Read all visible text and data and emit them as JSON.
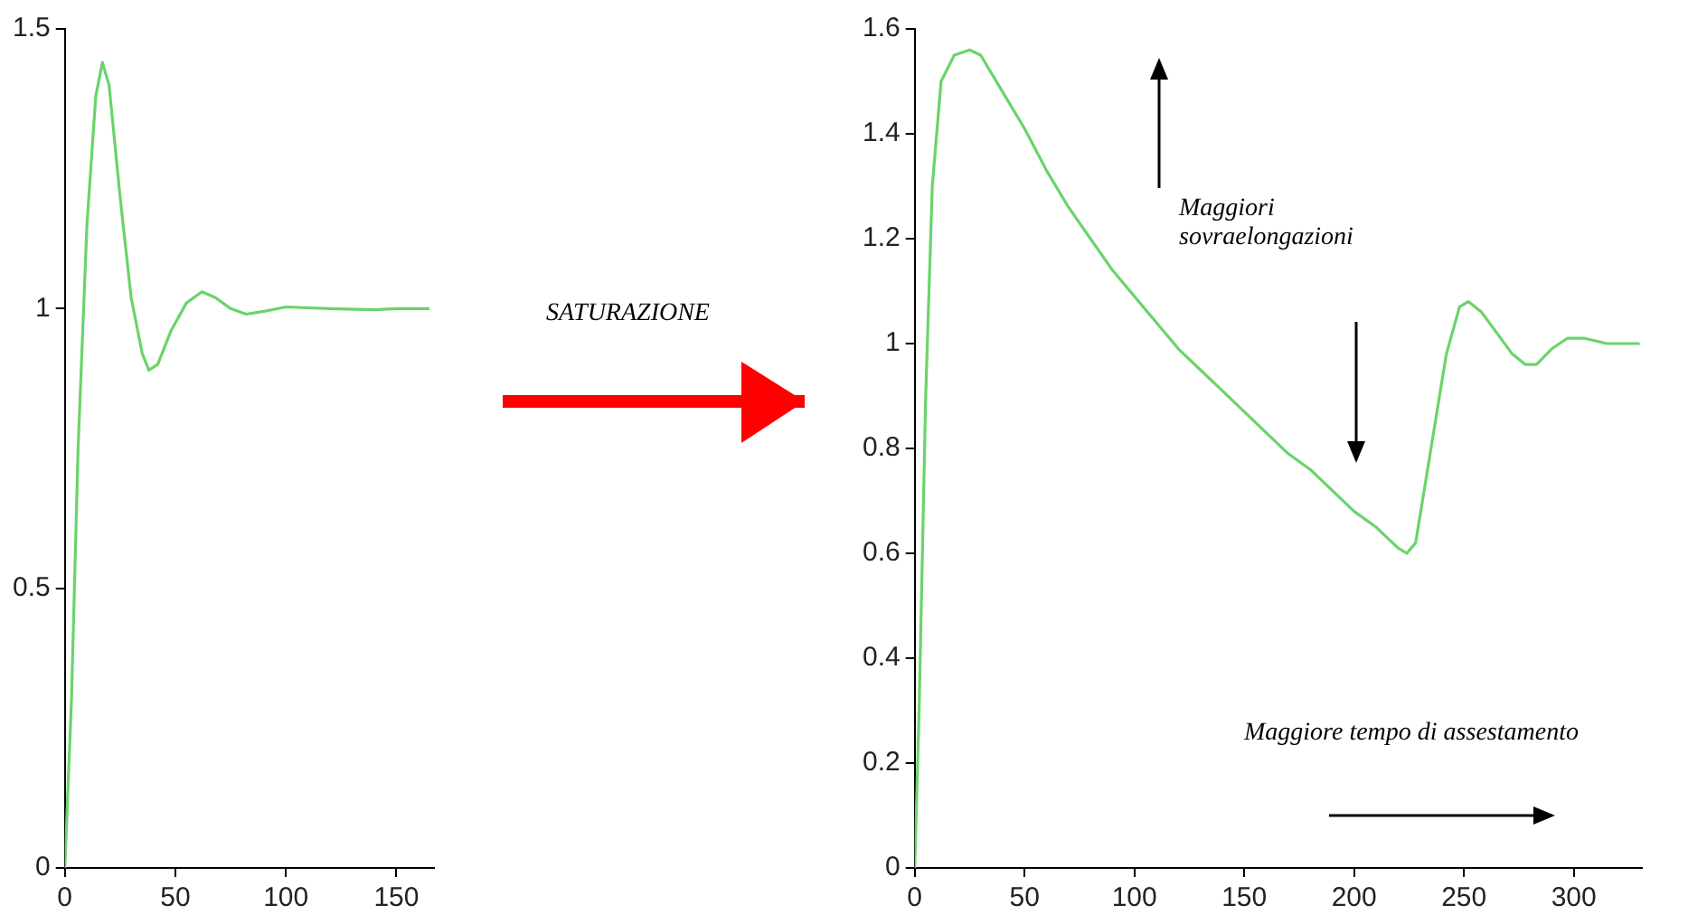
{
  "chart_data": [
    {
      "type": "line",
      "x": [
        0,
        3,
        6,
        10,
        14,
        17,
        20,
        25,
        30,
        35,
        38,
        42,
        48,
        55,
        62,
        68,
        75,
        82,
        90,
        100,
        120,
        140,
        150,
        165
      ],
      "series": [
        {
          "color": "#6ad46a",
          "values": [
            0,
            0.3,
            0.75,
            1.15,
            1.38,
            1.44,
            1.4,
            1.2,
            1.02,
            0.92,
            0.89,
            0.9,
            0.96,
            1.01,
            1.03,
            1.02,
            1.0,
            0.99,
            0.995,
            1.003,
            1.0,
            0.998,
            1.0,
            1.0
          ]
        }
      ],
      "xlim": [
        0,
        167
      ],
      "xticks": [
        0,
        50,
        100,
        150
      ],
      "ylim": [
        0,
        1.5
      ],
      "yticks": [
        0,
        0.5,
        1,
        1.5
      ],
      "grid": false,
      "legend": false
    },
    {
      "type": "other",
      "annotations": [
        "SATURAZIONE"
      ]
    },
    {
      "type": "line",
      "x": [
        0,
        2,
        5,
        8,
        12,
        18,
        25,
        30,
        40,
        50,
        60,
        70,
        80,
        90,
        100,
        110,
        120,
        130,
        140,
        150,
        160,
        170,
        180,
        190,
        200,
        210,
        220,
        224,
        228,
        235,
        242,
        248,
        252,
        258,
        265,
        272,
        278,
        283,
        290,
        297,
        305,
        315,
        330
      ],
      "series": [
        {
          "color": "#6ad46a",
          "values": [
            0,
            0.3,
            0.9,
            1.3,
            1.5,
            1.55,
            1.56,
            1.55,
            1.48,
            1.41,
            1.33,
            1.26,
            1.2,
            1.14,
            1.09,
            1.04,
            0.99,
            0.95,
            0.91,
            0.87,
            0.83,
            0.79,
            0.76,
            0.72,
            0.68,
            0.65,
            0.61,
            0.6,
            0.62,
            0.8,
            0.98,
            1.07,
            1.08,
            1.06,
            1.02,
            0.98,
            0.96,
            0.96,
            0.99,
            1.01,
            1.01,
            1.0,
            1.0
          ]
        }
      ],
      "xlim": [
        0,
        331
      ],
      "xticks": [
        0,
        50,
        100,
        150,
        200,
        250,
        300
      ],
      "ylim": [
        0,
        1.6
      ],
      "yticks": [
        0,
        0.2,
        0.4,
        0.6,
        0.8,
        1,
        1.2,
        1.4,
        1.6
      ],
      "grid": false,
      "legend": false,
      "annotations": [
        "Maggiori sovraelongazioni",
        "Maggiore tempo di assestamento"
      ]
    }
  ]
}
